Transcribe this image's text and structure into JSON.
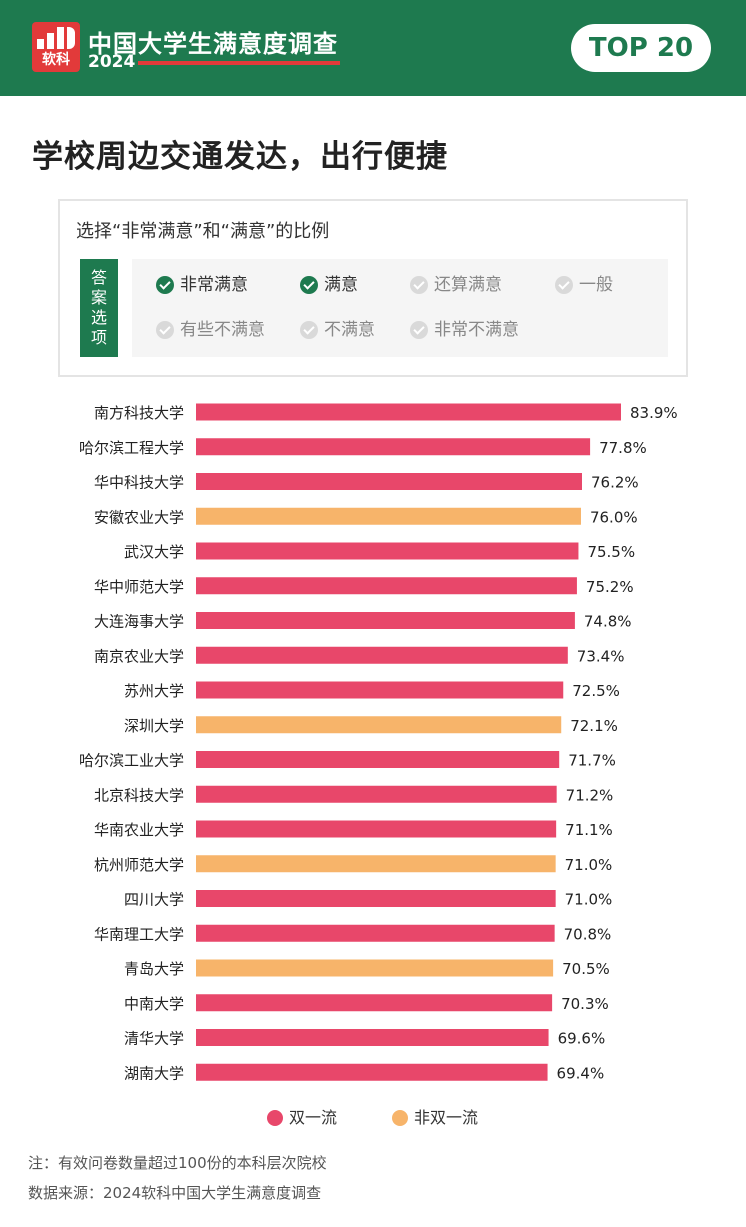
{
  "header": {
    "logo_brand": "软科",
    "survey_title": "中国大学生满意度调查",
    "survey_year": "2024",
    "badge": "TOP 20"
  },
  "page_title": "学校周边交通发达，出行便捷",
  "options_panel": {
    "prompt": "选择“非常满意”和“满意”的比例",
    "side_label": [
      "答",
      "案",
      "选",
      "项"
    ],
    "options": [
      {
        "label": "非常满意",
        "selected": true
      },
      {
        "label": "满意",
        "selected": true
      },
      {
        "label": "还算满意",
        "selected": false
      },
      {
        "label": "一般",
        "selected": false
      },
      {
        "label": "有些不满意",
        "selected": false
      },
      {
        "label": "不满意",
        "selected": false
      },
      {
        "label": "非常不满意",
        "selected": false
      }
    ]
  },
  "colors": {
    "brand_green": "#1e7a4f",
    "double_first_class": "#e8476a",
    "non_double_first_class": "#f7b46a",
    "logo_red": "#e23a3a"
  },
  "chart_data": {
    "type": "bar",
    "orientation": "horizontal",
    "categories": [
      "南方科技大学",
      "哈尔滨工程大学",
      "华中科技大学",
      "安徽农业大学",
      "武汉大学",
      "华中师范大学",
      "大连海事大学",
      "南京农业大学",
      "苏州大学",
      "深圳大学",
      "哈尔滨工业大学",
      "北京科技大学",
      "华南农业大学",
      "杭州师范大学",
      "四川大学",
      "华南理工大学",
      "青岛大学",
      "中南大学",
      "清华大学",
      "湖南大学"
    ],
    "values": [
      83.9,
      77.8,
      76.2,
      76.0,
      75.5,
      75.2,
      74.8,
      73.4,
      72.5,
      72.1,
      71.7,
      71.2,
      71.1,
      71.0,
      71.0,
      70.8,
      70.5,
      70.3,
      69.6,
      69.4
    ],
    "value_labels": [
      "83.9%",
      "77.8%",
      "76.2%",
      "76.0%",
      "75.5%",
      "75.2%",
      "74.8%",
      "73.4%",
      "72.5%",
      "72.1%",
      "71.7%",
      "71.2%",
      "71.1%",
      "71.0%",
      "71.0%",
      "70.8%",
      "70.5%",
      "70.3%",
      "69.6%",
      "69.4%"
    ],
    "groups": [
      "双一流",
      "双一流",
      "双一流",
      "非双一流",
      "双一流",
      "双一流",
      "双一流",
      "双一流",
      "双一流",
      "非双一流",
      "双一流",
      "双一流",
      "双一流",
      "非双一流",
      "双一流",
      "双一流",
      "非双一流",
      "双一流",
      "双一流",
      "双一流"
    ],
    "legend": [
      {
        "label": "双一流",
        "color": "#e8476a"
      },
      {
        "label": "非双一流",
        "color": "#f7b46a"
      }
    ],
    "legend_position": "bottom-center",
    "grid": false
  },
  "footnotes": [
    "注：有效问卷数量超过100份的本科层次院校",
    "数据来源：2024软科中国大学生满意度调查"
  ]
}
